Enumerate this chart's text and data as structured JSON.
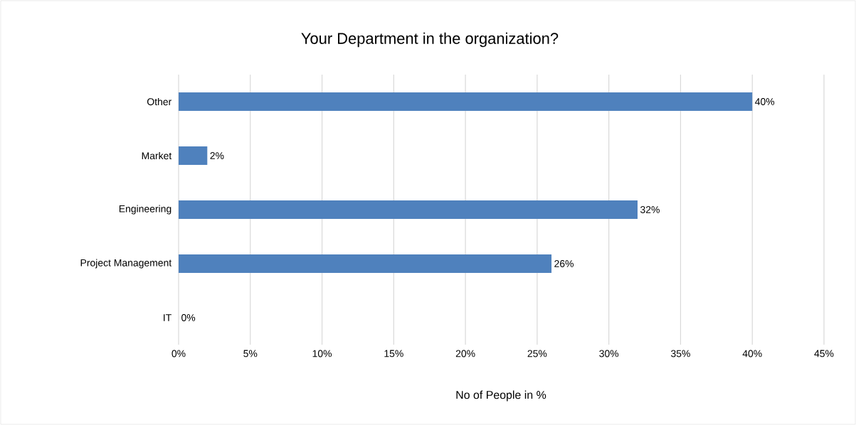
{
  "chart_data": {
    "type": "bar",
    "orientation": "horizontal",
    "title": "Your Department in the organization?",
    "xlabel": "No of People in %",
    "categories": [
      "Other",
      "Market",
      "Engineering",
      "Project Management",
      "IT"
    ],
    "values": [
      40,
      2,
      32,
      26,
      0
    ],
    "color": "#4f81bd",
    "value_labels": [
      "40%",
      "2%",
      "32%",
      "26%",
      "0%"
    ],
    "xlim": [
      0,
      45
    ],
    "xticks": [
      {
        "value": 0,
        "label": "0%"
      },
      {
        "value": 5,
        "label": "5%"
      },
      {
        "value": 10,
        "label": "10%"
      },
      {
        "value": 15,
        "label": "15%"
      },
      {
        "value": 20,
        "label": "20%"
      },
      {
        "value": 25,
        "label": "25%"
      },
      {
        "value": 30,
        "label": "30%"
      },
      {
        "value": 35,
        "label": "35%"
      },
      {
        "value": 40,
        "label": "40%"
      },
      {
        "value": 45,
        "label": "45%"
      }
    ],
    "grid": "x"
  }
}
